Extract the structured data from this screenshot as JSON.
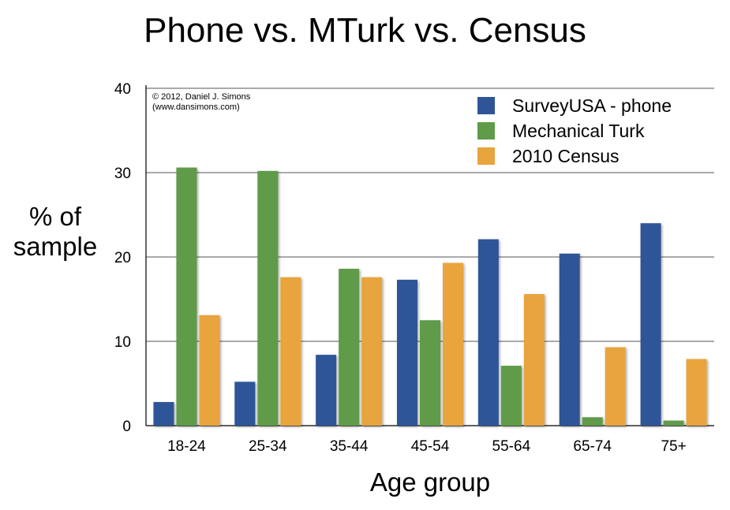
{
  "chart_data": {
    "type": "bar",
    "title": "Phone vs. MTurk vs. Census",
    "xlabel": "Age group",
    "ylabel": "% of sample",
    "ylim": [
      0,
      40
    ],
    "yticks": [
      "0",
      "10",
      "20",
      "30",
      "40"
    ],
    "grid": true,
    "legend_position": "top-right",
    "categories": [
      "18-24",
      "25-34",
      "35-44",
      "45-54",
      "55-64",
      "65-74",
      "75+"
    ],
    "series": [
      {
        "name": "SurveyUSA - phone",
        "color": "#2f5597",
        "values": [
          2.8,
          5.2,
          8.4,
          17.3,
          22.1,
          20.4,
          24.0
        ]
      },
      {
        "name": "Mechanical Turk",
        "color": "#5f9b49",
        "values": [
          30.6,
          30.2,
          18.6,
          12.5,
          7.1,
          1.0,
          0.6
        ]
      },
      {
        "name": "2010 Census",
        "color": "#e8a43d",
        "values": [
          13.1,
          17.6,
          17.6,
          19.3,
          15.6,
          9.3,
          7.9
        ]
      }
    ],
    "annotations": [
      "© 2012, Daniel J. Simons",
      "(www.dansimons.com)"
    ]
  }
}
